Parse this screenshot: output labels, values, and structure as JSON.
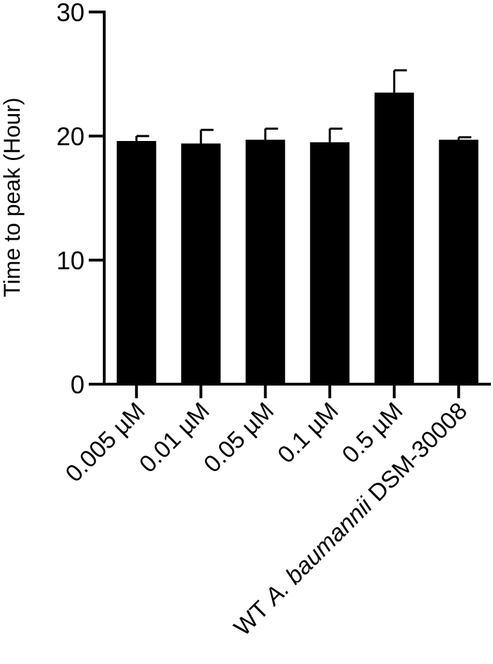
{
  "chart_data": {
    "type": "bar",
    "title": "",
    "ylabel": "Time to peak (Hour)",
    "xlabel": "",
    "ylim": [
      0,
      30
    ],
    "yticks": [
      0,
      10,
      20,
      30
    ],
    "categories": [
      "0.005 µM",
      "0.01 µM",
      "0.05 µM",
      "0.1 µM",
      "0.5 µM",
      "WT A. baumannii DSM-30008"
    ],
    "last_category_parts": {
      "prefix": "WT ",
      "italic": "A. baumannii",
      "suffix": " DSM-30008"
    },
    "values": [
      19.6,
      19.4,
      19.7,
      19.5,
      23.5,
      19.7
    ],
    "errors": [
      0.4,
      1.1,
      0.9,
      1.1,
      1.8,
      0.2
    ],
    "bar_color": "#000000",
    "grid": false,
    "legend": "none"
  }
}
